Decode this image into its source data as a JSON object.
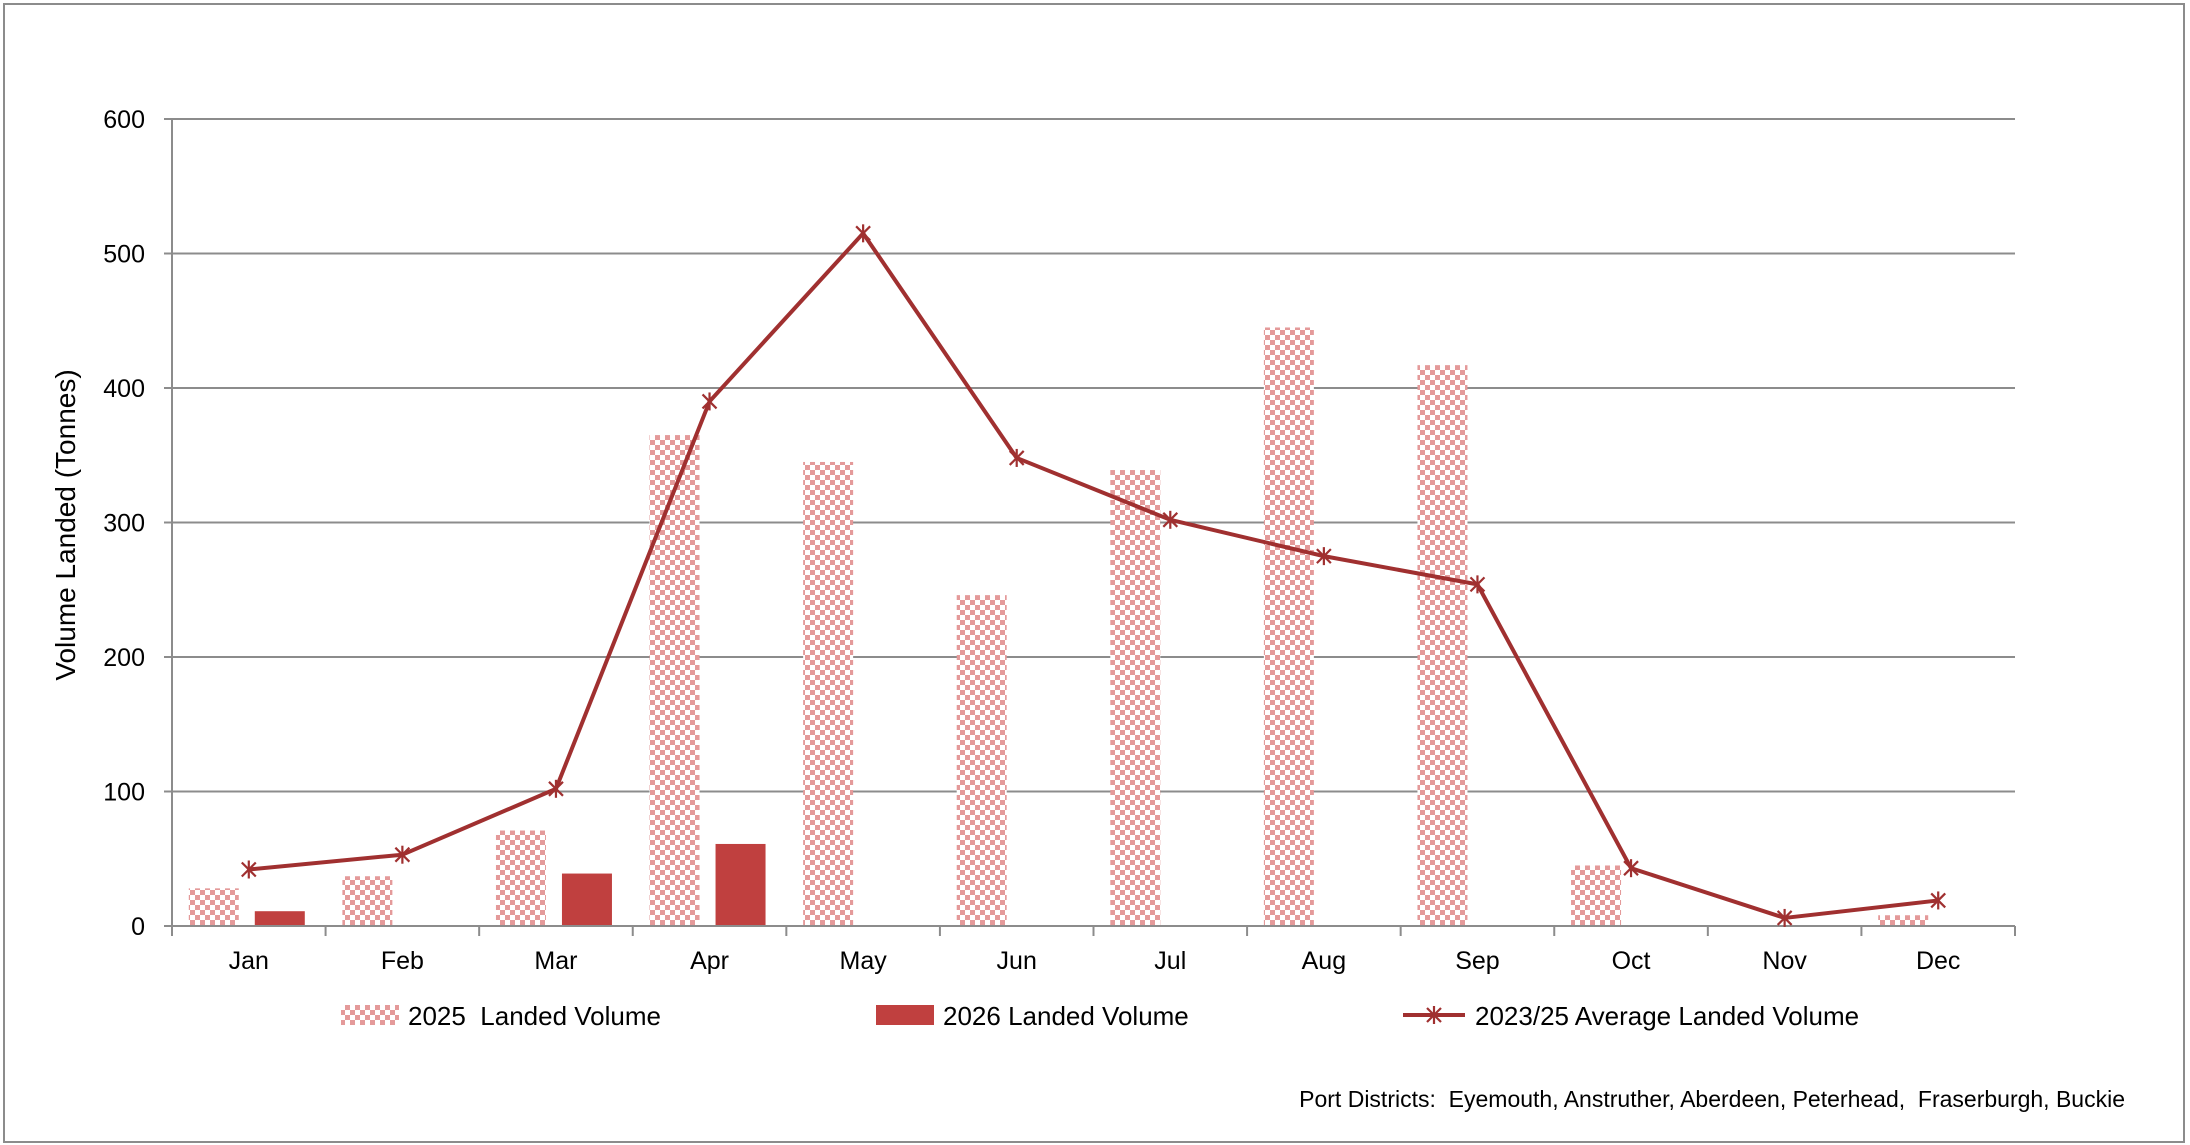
{
  "chart_data": {
    "type": "bar",
    "categories": [
      "Jan",
      "Feb",
      "Mar",
      "Apr",
      "May",
      "Jun",
      "Jul",
      "Aug",
      "Sep",
      "Oct",
      "Nov",
      "Dec"
    ],
    "series": [
      {
        "name": "2025  Landed Volume",
        "kind": "bar",
        "pattern": "checker",
        "color": "#e8a0a0",
        "values": [
          28,
          37,
          71,
          365,
          345,
          246,
          339,
          445,
          417,
          45,
          0,
          8
        ]
      },
      {
        "name": "2026 Landed Volume",
        "kind": "bar",
        "pattern": "solid",
        "color": "#c0403f",
        "values": [
          11,
          0,
          39,
          61,
          0,
          0,
          0,
          0,
          0,
          0,
          0,
          0
        ]
      },
      {
        "name": "2023/25 Average Landed Volume",
        "kind": "line",
        "marker": "asterisk",
        "color": "#a03030",
        "values": [
          42,
          53,
          102,
          390,
          515,
          348,
          302,
          275,
          254,
          43,
          6,
          19
        ]
      }
    ],
    "ylabel": "Volume Landed (Tonnes)",
    "xlabel": "",
    "ylim": [
      0,
      600
    ],
    "yticks": [
      0,
      100,
      200,
      300,
      400,
      500,
      600
    ],
    "grid": true,
    "legend": "bottom",
    "note": "Port Districts:  Eyemouth, Anstruther, Aberdeen, Peterhead,  Fraserburgh, Buckie"
  }
}
